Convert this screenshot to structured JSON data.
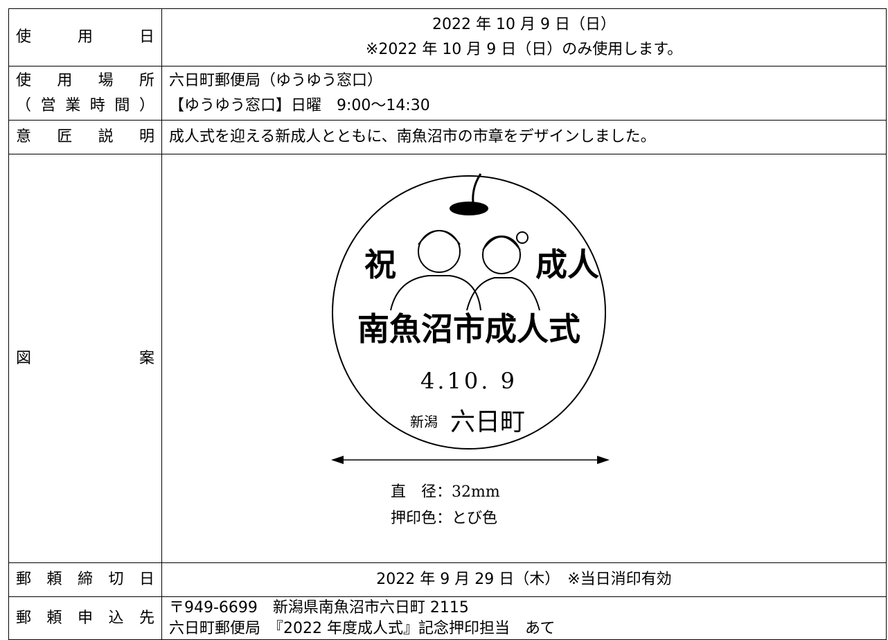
{
  "rows": [
    {
      "label": [
        "使用日"
      ],
      "lines": [
        "2022 年 10 月 9 日（日）",
        "※2022 年 10 月 9 日（日）のみ使用します。"
      ]
    },
    {
      "label": [
        "使用場所",
        "（営業時間）"
      ],
      "lines": [
        "六日町郵便局（ゆうゆう窓口）",
        "【ゆうゆう窓口】日曜　9:00～14:30"
      ]
    },
    {
      "label": [
        "意匠説明"
      ],
      "lines": [
        "成人式を迎える新成人とともに、南魚沼市の市章をデザインしました。"
      ]
    },
    {
      "label": [
        "図案"
      ],
      "stamp": {
        "left": "祝",
        "right": "成人",
        "name": "南魚沼市成人式",
        "date": "4.10. 9",
        "pref": "新潟",
        "office": "六日町"
      },
      "lines": [
        "直　径：32mm",
        "押印色：とび色"
      ]
    },
    {
      "label": [
        "郵頼締切日"
      ],
      "lines": [
        "2022 年 9 月 29 日（木）　※当日消印有効"
      ]
    },
    {
      "label": [
        "郵頼申込先"
      ],
      "lines": [
        "〒949-6699　新潟県南魚沼市六日町 2115",
        "六日町郵便局　『2022 年度成人式』記念押印担当　あて"
      ]
    }
  ]
}
